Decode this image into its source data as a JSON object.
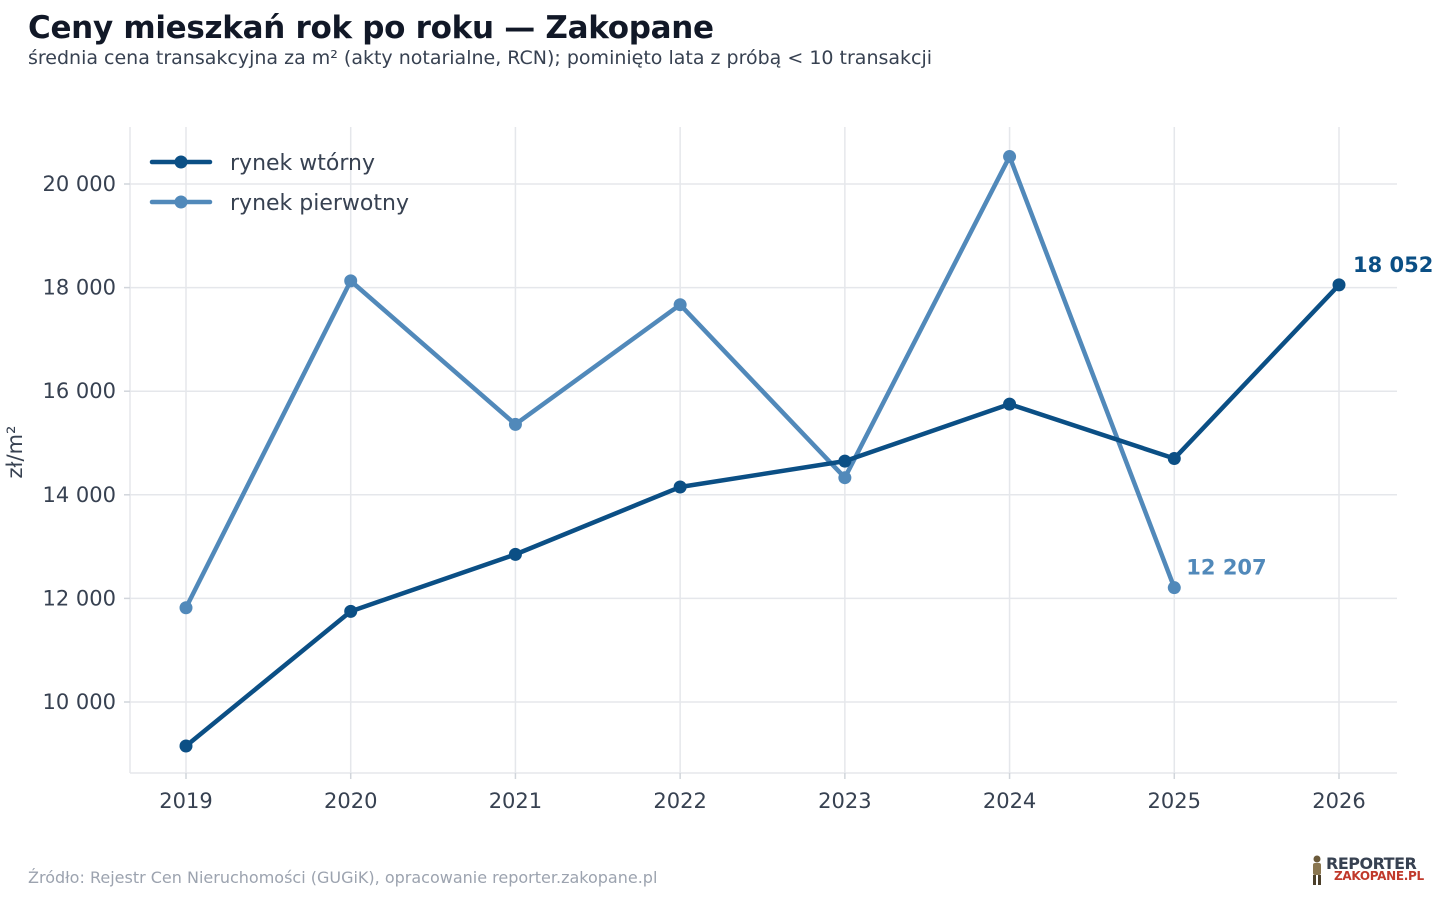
{
  "header": {
    "title": "Ceny mieszkań rok po roku — Zakopane",
    "subtitle": "średnia cena transakcyjna za m² (akty notarialne, RCN); pominięto lata z próbą < 10 transakcji"
  },
  "footer": {
    "source": "Źródło: Rejestr Cen Nieruchomości (GUGiK), opracowanie reporter.zakopane.pl",
    "logo_line1": "REPORTER",
    "logo_line2": "ZAKOPANE.PL"
  },
  "colors": {
    "secondary": "#0b4f85",
    "primary": "#5189ba",
    "grid": "#e5e7eb"
  },
  "chart_data": {
    "type": "line",
    "title": "Ceny mieszkań rok po roku — Zakopane",
    "subtitle": "średnia cena transakcyjna za m² (akty notarialne, RCN); pominięto lata z próbą < 10 transakcji",
    "xlabel": "",
    "ylabel": "zł/m²",
    "x": [
      2019,
      2020,
      2021,
      2022,
      2023,
      2024,
      2025,
      2026
    ],
    "xlim": [
      2018.65,
      2026.35
    ],
    "ylim": [
      8600,
      21100
    ],
    "yticks": [
      10000,
      12000,
      14000,
      16000,
      18000,
      20000
    ],
    "ytick_labels": [
      "10 000",
      "12 000",
      "14 000",
      "16 000",
      "18 000",
      "20 000"
    ],
    "grid": true,
    "legend_position": "top-left",
    "series": [
      {
        "name": "rynek wtórny",
        "color": "#0b4f85",
        "values": [
          9150,
          11750,
          12850,
          14150,
          14650,
          15750,
          14700,
          18052
        ],
        "end_label": "18 052"
      },
      {
        "name": "rynek pierwotny",
        "color": "#5189ba",
        "values": [
          11820,
          18130,
          15360,
          17670,
          14330,
          20530,
          12207,
          null
        ],
        "end_label": "12 207"
      }
    ]
  }
}
